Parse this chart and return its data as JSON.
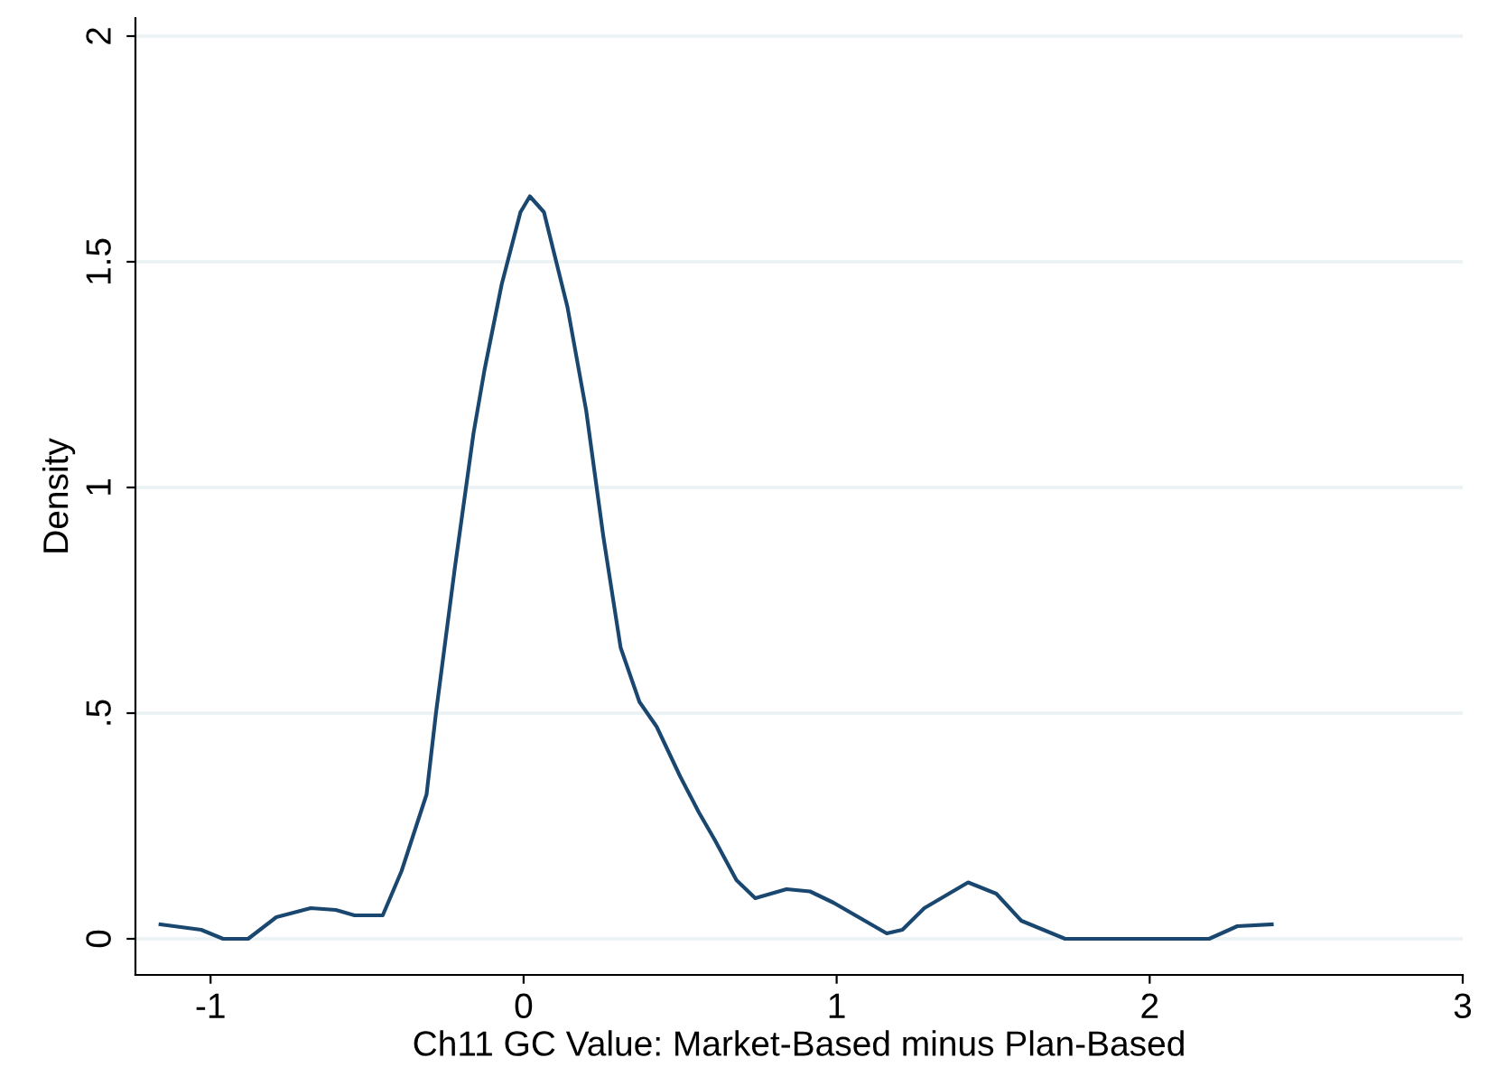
{
  "chart_data": {
    "type": "line",
    "xlabel": "Ch11 GC Value: Market-Based minus Plan-Based",
    "ylabel": "Density",
    "x": [
      -1.16,
      -1.03,
      -0.96,
      -0.88,
      -0.79,
      -0.68,
      -0.6,
      -0.54,
      -0.45,
      -0.39,
      -0.31,
      -0.28,
      -0.22,
      -0.16,
      -0.125,
      -0.07,
      -0.01,
      0.02,
      0.065,
      0.14,
      0.2,
      0.255,
      0.31,
      0.37,
      0.425,
      0.5,
      0.56,
      0.61,
      0.68,
      0.74,
      0.84,
      0.915,
      0.99,
      1.09,
      1.16,
      1.21,
      1.28,
      1.42,
      1.51,
      1.59,
      1.66,
      1.73,
      2.19,
      2.28,
      2.39
    ],
    "series": [
      {
        "color": "#1a476f",
        "values": [
          0.032,
          0.02,
          0,
          0,
          0.048,
          0.068,
          0.064,
          0.052,
          0.052,
          0.15,
          0.32,
          0.5,
          0.82,
          1.12,
          1.26,
          1.45,
          1.61,
          1.645,
          1.61,
          1.4,
          1.17,
          0.89,
          0.645,
          0.525,
          0.47,
          0.36,
          0.28,
          0.22,
          0.13,
          0.09,
          0.11,
          0.105,
          0.08,
          0.04,
          0.012,
          0.02,
          0.068,
          0.125,
          0.1,
          0.04,
          0.02,
          0,
          0,
          0.028,
          0.032
        ]
      }
    ],
    "xlim": [
      -1.24,
      3.0
    ],
    "ylim": [
      -0.08,
      2.04
    ],
    "xticks": [
      -1,
      0,
      1,
      2,
      3
    ],
    "yticks": [
      0,
      {
        "value": 0.5,
        "label": ".5"
      },
      1,
      1.5,
      2
    ],
    "grid": "y",
    "legend": false,
    "marker": "none",
    "line_style": "solid"
  }
}
